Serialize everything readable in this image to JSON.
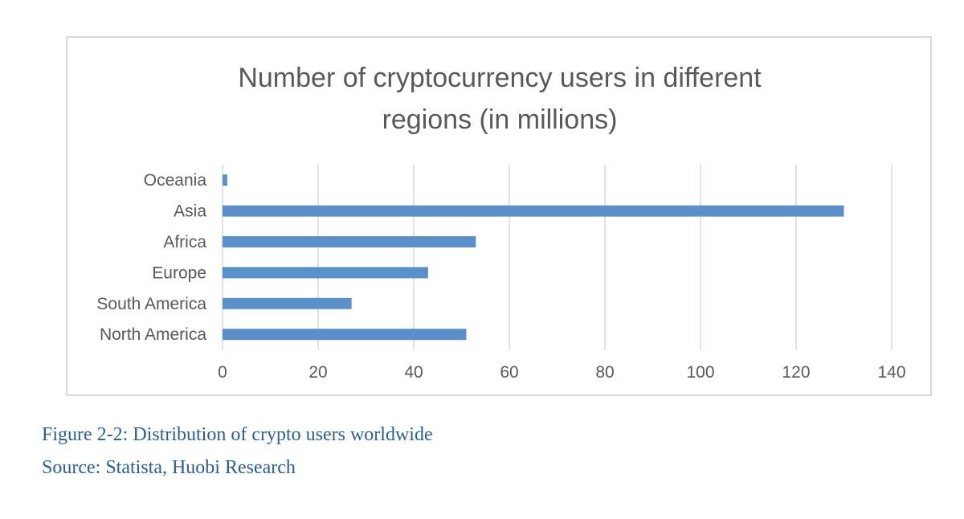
{
  "chart_data": {
    "type": "bar",
    "orientation": "horizontal",
    "title": "Number of cryptocurrency users in different regions (in millions)",
    "title_lines": [
      "Number of cryptocurrency users in different",
      "regions (in millions)"
    ],
    "categories": [
      "Oceania",
      "Asia",
      "Africa",
      "Europe",
      "South America",
      "North America"
    ],
    "values": [
      1,
      130,
      53,
      43,
      27,
      51
    ],
    "xlim": [
      0,
      140
    ],
    "x_ticks": [
      0,
      20,
      40,
      60,
      80,
      100,
      120,
      140
    ],
    "grid": "vertical",
    "legend": "none",
    "bar_color": "#5b8fc9"
  },
  "caption": {
    "figure": "Figure 2-2: Distribution of crypto users worldwide",
    "source": "Source: Statista, Huobi Research"
  },
  "colors": {
    "title_text": "#595959",
    "axis_text": "#595959",
    "grid": "#d9d9d9",
    "caption_text": "#2e5e8e"
  }
}
